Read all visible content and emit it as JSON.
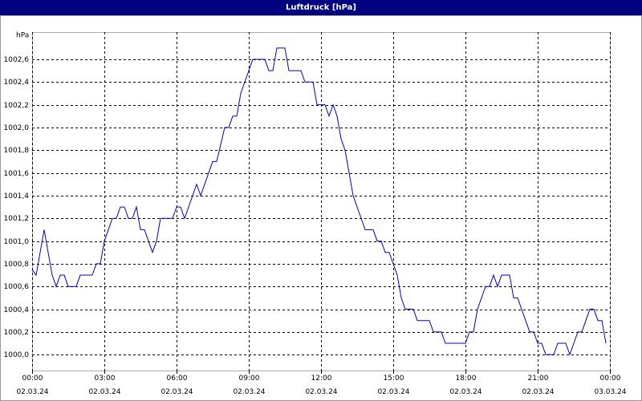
{
  "chart_data": {
    "type": "line",
    "title": "Luftdruck [hPa]",
    "y_label": "hPa",
    "x": [
      0,
      10,
      30,
      50,
      60,
      70,
      80,
      90,
      110,
      120,
      150,
      160,
      170,
      180,
      200,
      210,
      220,
      230,
      240,
      250,
      260,
      270,
      280,
      300,
      310,
      320,
      350,
      360,
      370,
      380,
      410,
      420,
      450,
      460,
      480,
      490,
      500,
      510,
      520,
      550,
      580,
      590,
      600,
      610,
      630,
      640,
      670,
      680,
      700,
      710,
      730,
      740,
      750,
      760,
      770,
      780,
      800,
      810,
      830,
      850,
      860,
      870,
      880,
      890,
      900,
      910,
      920,
      930,
      950,
      960,
      990,
      1000,
      1020,
      1030,
      1080,
      1090,
      1100,
      1110,
      1130,
      1140,
      1150,
      1160,
      1170,
      1190,
      1200,
      1210,
      1240,
      1250,
      1260,
      1270,
      1280,
      1300,
      1310,
      1330,
      1340,
      1360,
      1370,
      1390,
      1400,
      1410,
      1420,
      1430
    ],
    "series": [
      {
        "name": "Luftdruck",
        "color": "#0000cc",
        "values": [
          1000.75,
          1000.7,
          1001.1,
          1000.7,
          1000.6,
          1000.7,
          1000.7,
          1000.6,
          1000.6,
          1000.7,
          1000.7,
          1000.8,
          1000.8,
          1001.0,
          1001.2,
          1001.2,
          1001.3,
          1001.3,
          1001.2,
          1001.2,
          1001.3,
          1001.1,
          1001.1,
          1000.9,
          1001.0,
          1001.2,
          1001.2,
          1001.3,
          1001.3,
          1001.2,
          1001.5,
          1001.4,
          1001.7,
          1001.7,
          1002.0,
          1002.0,
          1002.1,
          1002.1,
          1002.3,
          1002.6,
          1002.6,
          1002.5,
          1002.5,
          1002.7,
          1002.7,
          1002.5,
          1002.5,
          1002.4,
          1002.4,
          1002.2,
          1002.2,
          1002.1,
          1002.2,
          1002.1,
          1001.9,
          1001.8,
          1001.4,
          1001.3,
          1001.1,
          1001.1,
          1001.0,
          1001.0,
          1000.9,
          1000.9,
          1000.8,
          1000.7,
          1000.5,
          1000.4,
          1000.4,
          1000.3,
          1000.3,
          1000.2,
          1000.2,
          1000.1,
          1000.1,
          1000.2,
          1000.2,
          1000.4,
          1000.6,
          1000.6,
          1000.7,
          1000.6,
          1000.7,
          1000.7,
          1000.5,
          1000.5,
          1000.2,
          1000.2,
          1000.1,
          1000.1,
          1000.0,
          1000.0,
          1000.1,
          1000.1,
          1000.0,
          1000.2,
          1000.2,
          1000.4,
          1000.4,
          1000.3,
          1000.3,
          1000.1
        ]
      }
    ],
    "xlim": [
      0,
      1440
    ],
    "xticks": [
      {
        "value": 0,
        "label": "00:00\n02.03.24"
      },
      {
        "value": 180,
        "label": "03:00\n02.03.24"
      },
      {
        "value": 360,
        "label": "06:00\n02.03.24"
      },
      {
        "value": 540,
        "label": "09:00\n02.03.24"
      },
      {
        "value": 720,
        "label": "12:00\n02.03.24"
      },
      {
        "value": 900,
        "label": "15:00\n02.03.24"
      },
      {
        "value": 1080,
        "label": "18:00\n02.03.24"
      },
      {
        "value": 1260,
        "label": "21:00\n02.03.24"
      },
      {
        "value": 1440,
        "label": "00:00\n03.03.24"
      }
    ],
    "ylim": [
      999.86,
      1002.84
    ],
    "yticks": [
      {
        "value": 1000.0,
        "label": "1000,0"
      },
      {
        "value": 1000.2,
        "label": "1000,2"
      },
      {
        "value": 1000.4,
        "label": "1000,4"
      },
      {
        "value": 1000.6,
        "label": "1000,6"
      },
      {
        "value": 1000.8,
        "label": "1000,8"
      },
      {
        "value": 1001.0,
        "label": "1001,0"
      },
      {
        "value": 1001.2,
        "label": "1001,2"
      },
      {
        "value": 1001.4,
        "label": "1001,4"
      },
      {
        "value": 1001.6,
        "label": "1001,6"
      },
      {
        "value": 1001.8,
        "label": "1001,8"
      },
      {
        "value": 1002.0,
        "label": "1002,0"
      },
      {
        "value": 1002.2,
        "label": "1002,2"
      },
      {
        "value": 1002.4,
        "label": "1002,4"
      },
      {
        "value": 1002.6,
        "label": "1002,6"
      }
    ],
    "grid": true
  }
}
